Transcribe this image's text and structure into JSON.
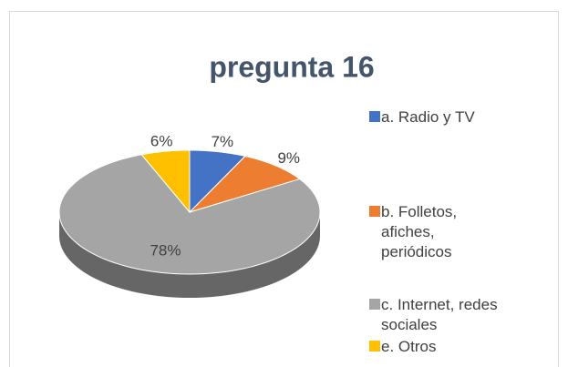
{
  "chart_data": {
    "type": "pie3d",
    "title": "pregunta 16",
    "categories": [
      "a. Radio y TV",
      "b. Folletos, afiches, periódicos",
      "c.  Internet, redes sociales",
      "e. Otros"
    ],
    "values": [
      7,
      9,
      78,
      6
    ],
    "value_labels": [
      "7%",
      "9%",
      "78%",
      "6%"
    ],
    "colors": [
      "#4472c4",
      "#ed7d31",
      "#a5a5a5",
      "#ffc000"
    ]
  }
}
